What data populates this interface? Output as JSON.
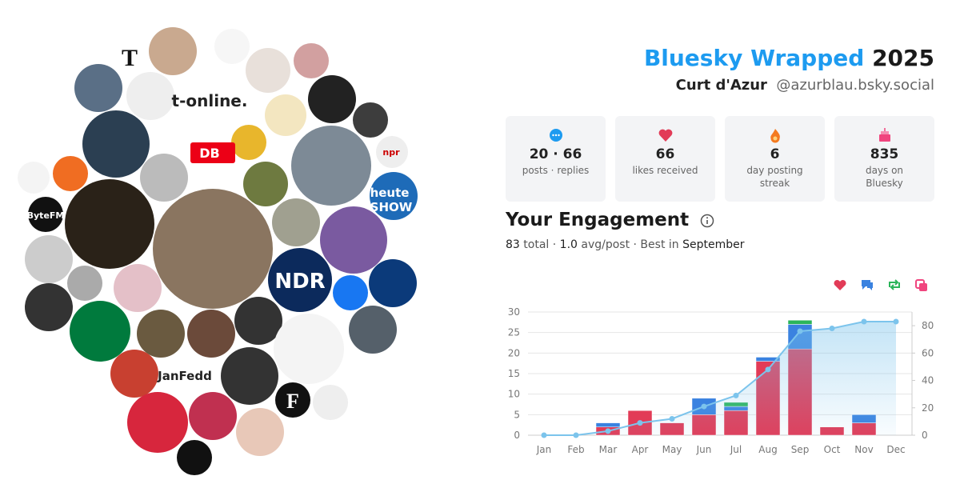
{
  "header": {
    "title": "Bluesky Wrapped",
    "year": "2025",
    "name": "Curt d'Azur",
    "handle": "@azurblau.bsky.social"
  },
  "stats": [
    {
      "value": "20 · 66",
      "label": "posts · replies"
    },
    {
      "value": 66,
      "label": "likes received"
    },
    {
      "value": 6,
      "label": "day posting streak"
    },
    {
      "value": 835,
      "label": "days on Bluesky"
    }
  ],
  "engagement": {
    "title": "Your Engagement",
    "total": 83,
    "total_text": "total · ",
    "avg": "1.0",
    "avg_text": "avg/post · Best in ",
    "best": "September"
  },
  "avatars": {
    "labels": [
      "T",
      "t-online.",
      "DB",
      "npr",
      "heute",
      "SHOW",
      "ByteFM",
      "NDR",
      "JanFedd",
      "F"
    ]
  },
  "chart_data": {
    "type": "bar",
    "categories": [
      "Jan",
      "Feb",
      "Mar",
      "Apr",
      "May",
      "Jun",
      "Jul",
      "Aug",
      "Sep",
      "Oct",
      "Nov",
      "Dec"
    ],
    "series": [
      {
        "color": "#e23b57",
        "values": [
          0,
          0,
          2,
          6,
          3,
          5,
          6,
          18,
          21,
          2,
          3,
          0
        ]
      },
      {
        "color": "#3a82e0",
        "values": [
          0,
          0,
          1,
          0,
          0,
          4,
          1,
          1,
          6,
          0,
          2,
          0
        ]
      },
      {
        "color": "#2bb55a",
        "values": [
          0,
          0,
          0,
          0,
          0,
          0,
          1,
          0,
          1,
          0,
          0,
          0
        ]
      },
      {
        "color": "#f0457e",
        "values": [
          0,
          0,
          0,
          0,
          0,
          0,
          0,
          0,
          0,
          0,
          0,
          0
        ]
      },
      {
        "type": "line",
        "axis": "y2",
        "color": "#7cc4ec",
        "values": [
          0,
          0,
          3,
          9,
          12,
          21,
          29,
          48,
          76,
          78,
          83,
          83
        ]
      }
    ],
    "ylim": [
      0,
      30
    ],
    "yticks": [
      0,
      5,
      10,
      15,
      20,
      25,
      30
    ],
    "y2lim": [
      0,
      90
    ],
    "y2ticks": [
      0,
      20,
      40,
      60,
      80
    ],
    "grid": true
  }
}
